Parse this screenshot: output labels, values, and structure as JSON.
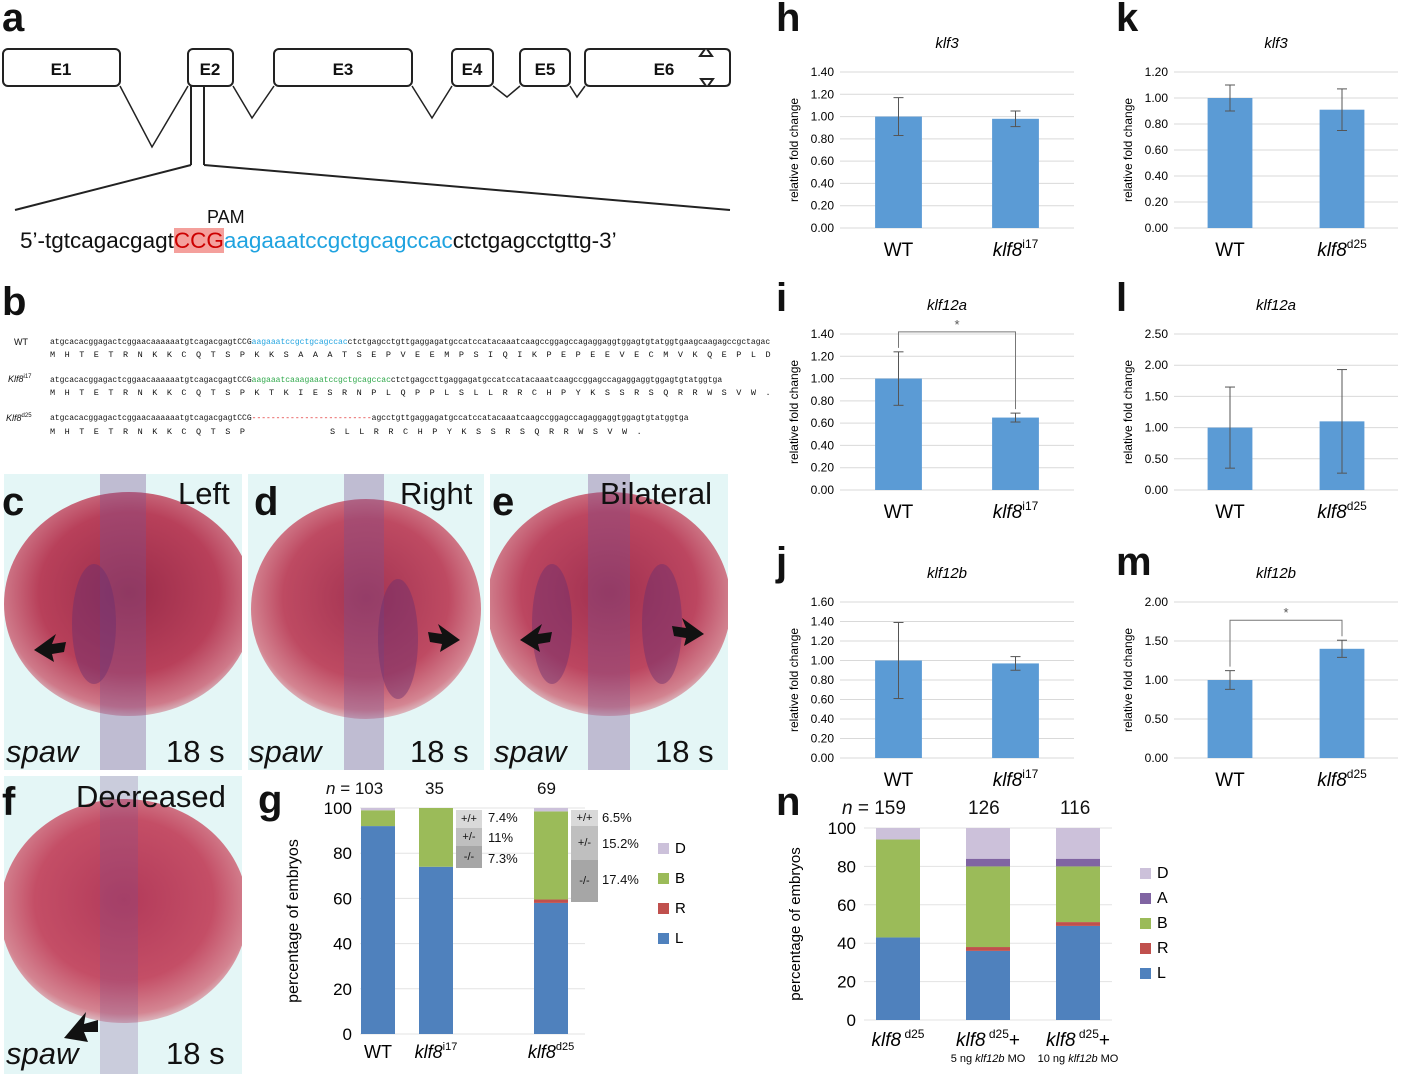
{
  "panel_a": {
    "letter": "a",
    "exons": [
      "E1",
      "E2",
      "E3",
      "E4",
      "E5",
      "E6"
    ],
    "pam_label": "PAM",
    "seq_prefix": "5’-tgtcagacgagt",
    "seq_pam": "CCG",
    "seq_target": "aagaaatccgctgcagccac",
    "seq_suffix": "ctctgagcctgttg-3’"
  },
  "panel_b": {
    "letter": "b",
    "rows": [
      {
        "label": "WT",
        "nt_prefix": "atgcacacggagactcggaacaaaaaatgtcagacgagtCCG",
        "nt_colored": "aagaaatccgctgcagccac",
        "nt_suffix": "ctctgagcctgttgaggagatgccatccatacaaatcaagccggagccagaggaggtggagtgtatggtgaagcaagagccgctagac",
        "aa": "M H T E T R N K K C Q T S P K K S A A A T S E P V E E M P S I Q I K P E P E E V E C M V K Q E P L D"
      },
      {
        "label": "Klf8",
        "label_sup": "i17",
        "nt_prefix": "atgcacacggagactcggaacaaaaaatgtcagacgagtCCG",
        "nt_colored": "aagaaatcaaagaaatccgctgcagccac",
        "nt_suffix": "ctctgagccttgaggagatgccatccatacaaatcaagccggagccagaggaggtggagtgtatggtga",
        "aa": "M H T E T R N K K C Q T S P K T K I E S R N P L Q P P L S L L R R C H P Y K S S R S Q R R W S V W ."
      },
      {
        "label": "Klf8",
        "label_sup": "d25",
        "nt_prefix": "atgcacacggagactcggaacaaaaaatgtcagacgagtCCG",
        "nt_colored": "-------------------------",
        "nt_suffix": "agcctgttgaggagatgccatccatacaaatcaagccggagccagaggaggtggagtgtatggtga",
        "aa_prefix": "M H T E T R N K K C Q T S P",
        "aa_suffix": "S L L R R C H P Y K S S R S Q R R W S V W ."
      }
    ]
  },
  "panels_photo": [
    {
      "letter": "c",
      "label": "Left",
      "gene": "spaw",
      "stage": "18 s"
    },
    {
      "letter": "d",
      "label": "Right",
      "gene": "spaw",
      "stage": "18 s"
    },
    {
      "letter": "e",
      "label": "Bilateral",
      "gene": "spaw",
      "stage": "18 s"
    },
    {
      "letter": "f",
      "label": "Decreased",
      "gene": "spaw",
      "stage": "18 s"
    }
  ],
  "panel_g": {
    "letter": "g",
    "n_prefix": "n",
    "n_values": [
      "= 103",
      "35",
      "69"
    ],
    "ylabel": "percentage of embryos",
    "genotype_i17": [
      "+/+",
      "+/-",
      "-/-"
    ],
    "genotype_i17_pct": [
      "7.4%",
      "11%",
      "7.3%"
    ],
    "genotype_d25": [
      "+/+",
      "+/-",
      "-/-"
    ],
    "genotype_d25_pct": [
      "6.5%",
      "15.2%",
      "17.4%"
    ],
    "xlabels": [
      {
        "main": "WT",
        "sup": ""
      },
      {
        "main": "klf8",
        "sup": "i17"
      },
      {
        "main": "klf8",
        "sup": "d25"
      }
    ],
    "legend": [
      "D",
      "B",
      "R",
      "L"
    ]
  },
  "panel_n": {
    "letter": "n",
    "n_prefix": "n",
    "n_values": [
      "= 159",
      "126",
      "116"
    ],
    "ylabel": "percentage of embryos",
    "xlabels": [
      {
        "main": "klf8",
        "sup": "d25",
        "plus": "",
        "sub": ""
      },
      {
        "main": "klf8",
        "sup": "d25",
        "plus": "+",
        "sub_pre": "5 ng ",
        "sub_gene": "klf12b",
        "sub_post": " MO"
      },
      {
        "main": "klf8",
        "sup": "d25",
        "plus": "+",
        "sub_pre": "10 ng ",
        "sub_gene": "klf12b",
        "sub_post": " MO"
      }
    ],
    "legend": [
      "D",
      "A",
      "B",
      "R",
      "L"
    ]
  },
  "colors": {
    "bar_blue": "#5b9bd5",
    "stack_L": "#4f81bd",
    "stack_R": "#c0504d",
    "stack_B": "#9bbb59",
    "stack_A": "#8064a2",
    "stack_D": "#ccc1da",
    "pam_bg": "#f4a09c",
    "target_blue": "#1fa3e0",
    "i17_green": "#2ea84a",
    "d25_red": "#e02020"
  },
  "chart_data": [
    {
      "panel": "h",
      "type": "bar",
      "title": "klf3",
      "ylabel": "relative fold change",
      "categories": [
        {
          "main": "WT",
          "sup": ""
        },
        {
          "main": "klf8",
          "sup": "i17"
        }
      ],
      "values": [
        1.0,
        0.98
      ],
      "errors": [
        0.17,
        0.07
      ],
      "ylim": [
        0,
        1.4
      ],
      "yticks": [
        "0.00",
        "0.20",
        "0.40",
        "0.60",
        "0.80",
        "1.00",
        "1.20",
        "1.40"
      ],
      "tickvals": [
        0,
        0.2,
        0.4,
        0.6,
        0.8,
        1.0,
        1.2,
        1.4
      ],
      "significance": ""
    },
    {
      "panel": "k",
      "type": "bar",
      "title": "klf3",
      "ylabel": "relative fold change",
      "categories": [
        {
          "main": "WT",
          "sup": ""
        },
        {
          "main": "klf8",
          "sup": "d25"
        }
      ],
      "values": [
        1.0,
        0.91
      ],
      "errors": [
        0.1,
        0.16
      ],
      "ylim": [
        0,
        1.2
      ],
      "yticks": [
        "0.00",
        "0.20",
        "0.40",
        "0.60",
        "0.80",
        "1.00",
        "1.20"
      ],
      "tickvals": [
        0,
        0.2,
        0.4,
        0.6,
        0.8,
        1.0,
        1.2
      ],
      "significance": ""
    },
    {
      "panel": "i",
      "type": "bar",
      "title": "klf12a",
      "ylabel": "relative fold change",
      "categories": [
        {
          "main": "WT",
          "sup": ""
        },
        {
          "main": "klf8",
          "sup": "i17"
        }
      ],
      "values": [
        1.0,
        0.65
      ],
      "errors": [
        0.24,
        0.04
      ],
      "ylim": [
        0,
        1.4
      ],
      "yticks": [
        "0.00",
        "0.20",
        "0.40",
        "0.60",
        "0.80",
        "1.00",
        "1.20",
        "1.40"
      ],
      "tickvals": [
        0,
        0.2,
        0.4,
        0.6,
        0.8,
        1.0,
        1.2,
        1.4
      ],
      "significance": "*"
    },
    {
      "panel": "l",
      "type": "bar",
      "title": "klf12a",
      "ylabel": "relative fold change",
      "categories": [
        {
          "main": "WT",
          "sup": ""
        },
        {
          "main": "klf8",
          "sup": "d25"
        }
      ],
      "values": [
        1.0,
        1.1
      ],
      "errors": [
        0.65,
        0.83
      ],
      "ylim": [
        0,
        2.5
      ],
      "yticks": [
        "0.00",
        "0.50",
        "1.00",
        "1.50",
        "2.00",
        "2.50"
      ],
      "tickvals": [
        0,
        0.5,
        1.0,
        1.5,
        2.0,
        2.5
      ],
      "significance": ""
    },
    {
      "panel": "j",
      "type": "bar",
      "title": "klf12b",
      "ylabel": "relative fold change",
      "categories": [
        {
          "main": "WT",
          "sup": ""
        },
        {
          "main": "klf8",
          "sup": "i17"
        }
      ],
      "values": [
        1.0,
        0.97
      ],
      "errors": [
        0.39,
        0.07
      ],
      "ylim": [
        0,
        1.6
      ],
      "yticks": [
        "0.00",
        "0.20",
        "0.40",
        "0.60",
        "0.80",
        "1.00",
        "1.20",
        "1.40",
        "1.60"
      ],
      "tickvals": [
        0,
        0.2,
        0.4,
        0.6,
        0.8,
        1.0,
        1.2,
        1.4,
        1.6
      ],
      "significance": ""
    },
    {
      "panel": "m",
      "type": "bar",
      "title": "klf12b",
      "ylabel": "relative fold change",
      "categories": [
        {
          "main": "WT",
          "sup": ""
        },
        {
          "main": "klf8",
          "sup": "d25"
        }
      ],
      "values": [
        1.0,
        1.4
      ],
      "errors": [
        0.12,
        0.11
      ],
      "ylim": [
        0,
        2.0
      ],
      "yticks": [
        "0.00",
        "0.50",
        "1.00",
        "1.50",
        "2.00"
      ],
      "tickvals": [
        0,
        0.5,
        1.0,
        1.5,
        2.0
      ],
      "significance": "*"
    },
    {
      "panel": "g",
      "type": "bar",
      "stacked": true,
      "ylabel": "percentage of embryos",
      "categories": [
        "WT",
        "klf8 i17",
        "klf8 d25"
      ],
      "ylim": [
        0,
        100
      ],
      "yticks": [
        "0",
        "20",
        "40",
        "60",
        "80",
        "100"
      ],
      "tickvals": [
        0,
        20,
        40,
        60,
        80,
        100
      ],
      "series": [
        {
          "name": "L",
          "values": [
            92,
            74,
            58
          ]
        },
        {
          "name": "R",
          "values": [
            0,
            0,
            1.5
          ]
        },
        {
          "name": "B",
          "values": [
            7,
            26,
            39
          ]
        },
        {
          "name": "D",
          "values": [
            1,
            0,
            1.5
          ]
        }
      ]
    },
    {
      "panel": "n",
      "type": "bar",
      "stacked": true,
      "ylabel": "percentage of embryos",
      "categories": [
        "klf8 d25",
        "klf8 d25 + 5 ng klf12b MO",
        "klf8 d25 + 10 ng klf12b MO"
      ],
      "ylim": [
        0,
        100
      ],
      "yticks": [
        "0",
        "20",
        "40",
        "60",
        "80",
        "100"
      ],
      "tickvals": [
        0,
        20,
        40,
        60,
        80,
        100
      ],
      "series": [
        {
          "name": "L",
          "values": [
            43,
            36,
            49
          ]
        },
        {
          "name": "R",
          "values": [
            0,
            2,
            2
          ]
        },
        {
          "name": "B",
          "values": [
            51,
            42,
            29
          ]
        },
        {
          "name": "A",
          "values": [
            0,
            4,
            4
          ]
        },
        {
          "name": "D",
          "values": [
            6,
            16,
            16
          ]
        }
      ]
    }
  ]
}
